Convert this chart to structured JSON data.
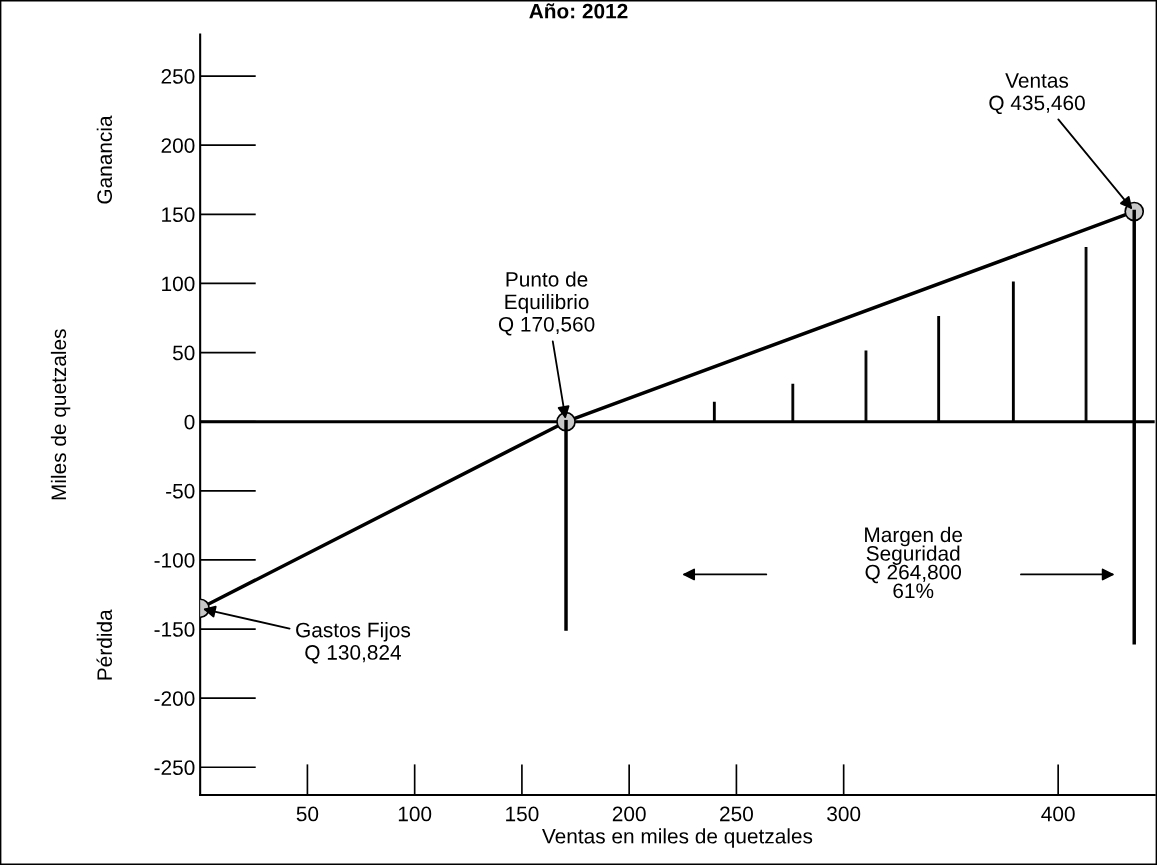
{
  "chart_data": {
    "type": "line",
    "title": "Año: 2012",
    "xlabel": "Ventas en miles de quetzales",
    "ylabel": "Miles de quetzales",
    "xlim": [
      0,
      445
    ],
    "xticks": [
      50,
      100,
      150,
      200,
      250,
      300,
      400
    ],
    "ylim": [
      -270,
      280
    ],
    "yticks": [
      -250,
      -200,
      -150,
      -100,
      -50,
      0,
      50,
      100,
      150,
      200,
      250
    ],
    "grid": false,
    "legend": false,
    "marker": "circle",
    "line_style": "solid",
    "series": [
      {
        "color": "#000000",
        "x": [
          0,
          170.56,
          435.46
        ],
        "values": [
          -135,
          0,
          152
        ]
      },
      {
        "type": "line",
        "color": "#000000",
        "marker": "none",
        "x": [
          170.56,
          170.56
        ],
        "values": [
          0,
          -150
        ]
      },
      {
        "type": "line",
        "color": "#000000",
        "marker": "none",
        "x": [
          435.46,
          435.46
        ],
        "values": [
          152,
          -160
        ]
      },
      {
        "type": "bar",
        "color": "#000000",
        "x": [
          239.7,
          276.3,
          310.4,
          344.3,
          379.1,
          413
        ],
        "values": [
          14,
          27,
          51,
          76,
          101,
          126
        ]
      }
    ],
    "ref_lines": [
      {
        "axis": "y",
        "value": 0,
        "color": "#000000"
      }
    ],
    "annotations": [
      {
        "text": "Gastos Fijos\nQ 130,824",
        "x": 0,
        "y": -135
      },
      {
        "text": "Punto de\nEquilibrio\nQ 170,560",
        "x": 170.56,
        "y": 0
      },
      {
        "text": "Ventas\nQ 435,460",
        "x": 435.46,
        "y": 152
      },
      "Margen de\nSeguridad\nQ 264,800\n61%",
      "Ganancia",
      "Pérdida"
    ]
  }
}
